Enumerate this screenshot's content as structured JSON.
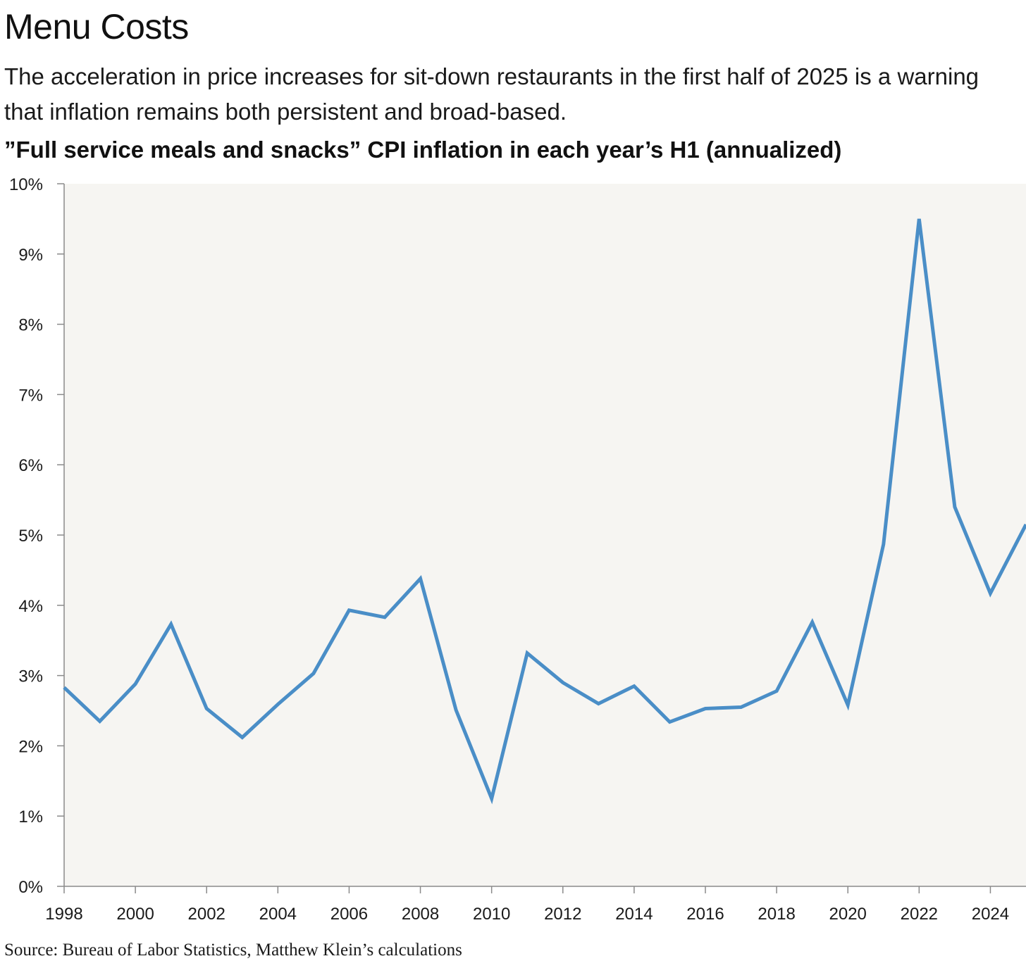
{
  "header": {
    "title": "Menu Costs",
    "subtitle": "The acceleration in price increases for sit-down restaurants in the first half of 2025 is a warning that inflation remains both persistent and broad-based.",
    "chart_heading": "”Full service meals and snacks” CPI inflation in each year’s H1 (annualized)"
  },
  "footer": {
    "source": "Source: Bureau of Labor Statistics, Matthew Klein’s calculations"
  },
  "colors": {
    "line": "#4a8ec7",
    "plot_background": "#f6f5f2",
    "axis": "#8a8a8a"
  },
  "chart_data": {
    "type": "line",
    "title": "”Full service meals and snacks” CPI inflation in each year’s H1 (annualized)",
    "xlabel": "",
    "ylabel": "",
    "x": [
      1998,
      1999,
      2000,
      2001,
      2002,
      2003,
      2004,
      2005,
      2006,
      2007,
      2008,
      2009,
      2010,
      2011,
      2012,
      2013,
      2014,
      2015,
      2016,
      2017,
      2018,
      2019,
      2020,
      2021,
      2022,
      2023,
      2024,
      2025
    ],
    "series": [
      {
        "values": [
          2.83,
          2.35,
          2.88,
          3.73,
          2.53,
          2.12,
          2.59,
          3.03,
          3.93,
          3.83,
          4.38,
          2.51,
          1.25,
          3.32,
          2.9,
          2.6,
          2.85,
          2.34,
          2.53,
          2.55,
          2.78,
          3.76,
          2.58,
          4.87,
          9.5,
          5.4,
          4.17,
          5.15
        ]
      }
    ],
    "xlim": [
      1998,
      2025
    ],
    "ylim": [
      0,
      10
    ],
    "x_ticks": [
      1998,
      2000,
      2002,
      2004,
      2006,
      2008,
      2010,
      2012,
      2014,
      2016,
      2018,
      2020,
      2022,
      2024
    ],
    "x_tick_labels": [
      "1998",
      "2000",
      "2002",
      "2004",
      "2006",
      "2008",
      "2010",
      "2012",
      "2014",
      "2016",
      "2018",
      "2020",
      "2022",
      "2024"
    ],
    "y_ticks": [
      0,
      1,
      2,
      3,
      4,
      5,
      6,
      7,
      8,
      9,
      10
    ],
    "y_tick_labels": [
      "0%",
      "1%",
      "2%",
      "3%",
      "4%",
      "5%",
      "6%",
      "7%",
      "8%",
      "9%",
      "10%"
    ],
    "grid": false,
    "legend": "none"
  }
}
